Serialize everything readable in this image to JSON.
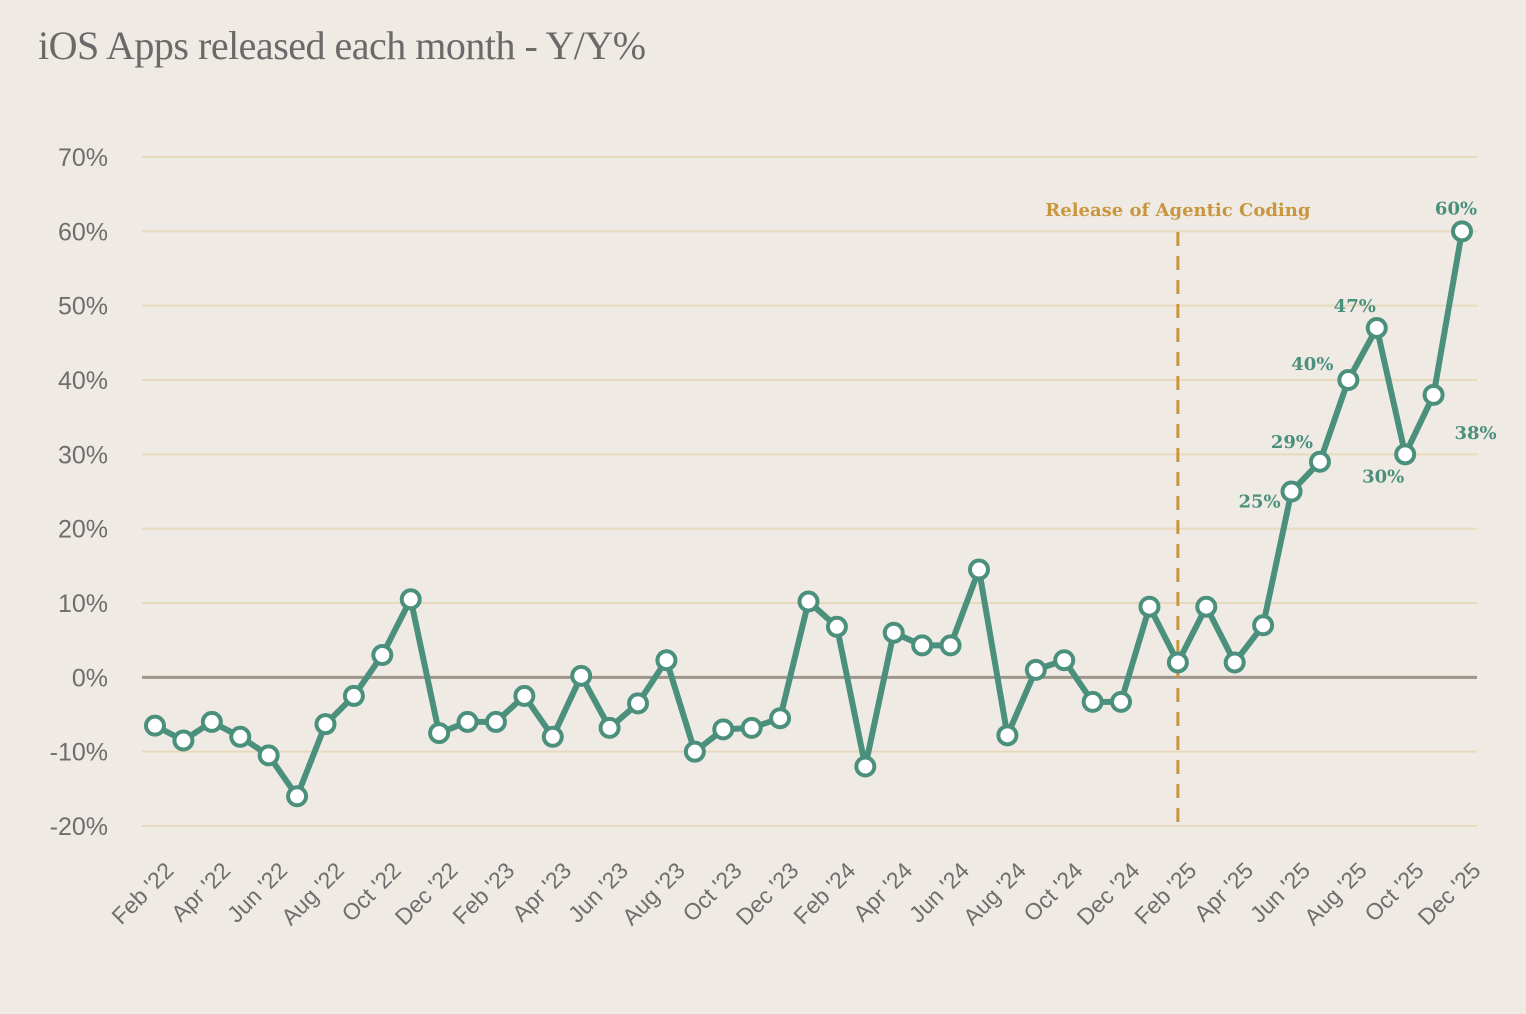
{
  "chart_data": {
    "type": "line",
    "title": "iOS Apps released each month - Y/Y%",
    "ylim": [
      -20,
      70
    ],
    "y_ticks": [
      70,
      60,
      50,
      40,
      30,
      20,
      10,
      0,
      -10,
      -20
    ],
    "y_tick_labels": [
      "70%",
      "60%",
      "50%",
      "40%",
      "30%",
      "20%",
      "10%",
      "0%",
      "-10%",
      "-20%"
    ],
    "x_tick_labels": [
      "Feb '22",
      "Apr '22",
      "Jun '22",
      "Aug '22",
      "Oct '22",
      "Dec '22",
      "Feb '23",
      "Apr '23",
      "Jun '23",
      "Aug '23",
      "Oct '23",
      "Dec '23",
      "Feb '24",
      "Apr '24",
      "Jun '24",
      "Aug '24",
      "Oct '24",
      "Dec '24",
      "Feb '25",
      "Apr '25",
      "Jun '25",
      "Aug '25",
      "Oct '25",
      "Dec '25"
    ],
    "grid": true,
    "series": [
      {
        "color": "#4b8f7d",
        "x": [
          "Feb '22",
          "Mar '22",
          "Apr '22",
          "May '22",
          "Jun '22",
          "Jul '22",
          "Aug '22",
          "Sep '22",
          "Oct '22",
          "Nov '22",
          "Dec '22",
          "Jan '23",
          "Feb '23",
          "Mar '23",
          "Apr '23",
          "May '23",
          "Jun '23",
          "Jul '23",
          "Aug '23",
          "Sep '23",
          "Oct '23",
          "Nov '23",
          "Dec '23",
          "Jan '24",
          "Feb '24",
          "Mar '24",
          "Apr '24",
          "May '24",
          "Jun '24",
          "Jul '24",
          "Aug '24",
          "Sep '24",
          "Oct '24",
          "Nov '24",
          "Dec '24",
          "Jan '25",
          "Feb '25",
          "Mar '25",
          "Apr '25",
          "May '25",
          "Jun '25",
          "Jul '25",
          "Aug '25",
          "Sep '25",
          "Oct '25",
          "Nov '25",
          "Dec '25"
        ],
        "values": [
          -6.5,
          -8.5,
          -6,
          -8,
          -10.5,
          -16,
          -6.3,
          -2.5,
          3,
          10.5,
          -7.5,
          -6,
          -6,
          -2.5,
          -8,
          0.2,
          -6.8,
          -3.5,
          2.3,
          -10,
          -7,
          -6.8,
          -5.5,
          10.2,
          6.8,
          -12,
          6,
          4.3,
          4.3,
          14.5,
          -7.8,
          1,
          2.3,
          -3.3,
          -3.3,
          9.5,
          2,
          9.5,
          2,
          7,
          25,
          29,
          40,
          47,
          30,
          38,
          60
        ]
      }
    ],
    "data_labels": [
      {
        "x": "Jun '25",
        "text": "25%"
      },
      {
        "x": "Jul '25",
        "text": "29%"
      },
      {
        "x": "Aug '25",
        "text": "40%"
      },
      {
        "x": "Sep '25",
        "text": "47%"
      },
      {
        "x": "Oct '25",
        "text": "30%"
      },
      {
        "x": "Nov '25",
        "text": "38%"
      },
      {
        "x": "Dec '25",
        "text": "60%"
      }
    ],
    "annotations": [
      {
        "x": "Feb '25",
        "text": "Release of Agentic Coding",
        "color": "#c9963e",
        "style": "dashed-vertical-line"
      }
    ],
    "colors": {
      "background": "#efebe4",
      "gridline": "#e6d9bd",
      "zero_line": "#9e968a"
    }
  }
}
